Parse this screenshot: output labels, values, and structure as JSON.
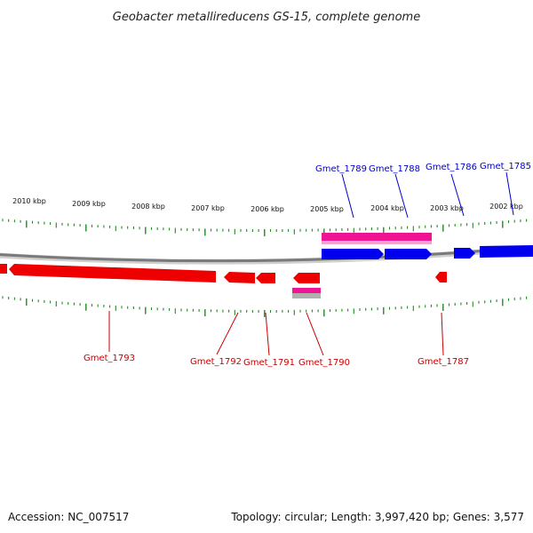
{
  "title": "Geobacter metallireducens GS-15, complete genome",
  "kbp_ticks": [
    "2010 kbp",
    "2009 kbp",
    "2008 kbp",
    "2007 kbp",
    "2006 kbp",
    "2005 kbp",
    "2004 kbp",
    "2003 kbp",
    "2002 kbp"
  ],
  "genes_top": [
    "Gmet_1789",
    "Gmet_1788",
    "Gmet_1786",
    "Gmet_1785"
  ],
  "genes_bottom": [
    "Gmet_1793",
    "Gmet_1792",
    "Gmet_1791",
    "Gmet_1790",
    "Gmet_1787"
  ],
  "footer": {
    "accession": "Accession: NC_007517",
    "summary": "Topology: circular; Length: 3,997,420 bp; Genes: 3,577"
  },
  "colors": {
    "forward_cds": "#0000ee",
    "reverse_cds": "#ee0000",
    "rna": "#ee1493",
    "ticks": "#228b22",
    "backbone": "#888888"
  }
}
